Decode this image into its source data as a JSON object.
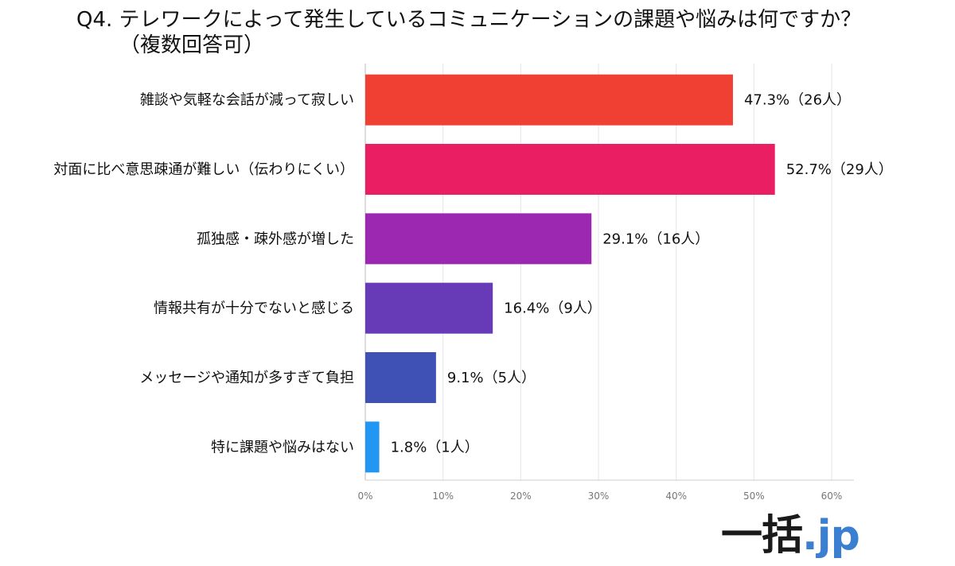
{
  "title": "Q4. テレワークによって発生しているコミュニケーションの課題や悩みは何ですか？",
  "subtitle": "（複数回答可）",
  "logo": {
    "main": "一括",
    "suffix": ".jp",
    "accent_color": "#3a7fd0"
  },
  "chart_data": {
    "type": "bar",
    "orientation": "horizontal",
    "title": "Q4. テレワークによって発生しているコミュニケーションの課題や悩みは何ですか？",
    "subtitle": "（複数回答可）",
    "categories": [
      "雑談や気軽な会話が減って寂しい",
      "対面に比べ意思疎通が難しい（伝わりにくい）",
      "孤独感・疎外感が増した",
      "情報共有が十分でないと感じる",
      "メッセージや通知が多すぎて負担",
      "特に課題や悩みはない"
    ],
    "values": [
      47.3,
      52.7,
      29.1,
      16.4,
      9.1,
      1.8
    ],
    "data_labels": [
      "47.3%（26人）",
      "52.7%（29人）",
      "29.1%（16人）",
      "16.4%（9人）",
      "9.1%（5人）",
      "1.8%（1人）"
    ],
    "colors": [
      "#f04034",
      "#e91e63",
      "#9c27b0",
      "#673ab7",
      "#3f51b5",
      "#2196f3"
    ],
    "xlim": [
      0,
      60
    ],
    "x_ticks": [
      "0%",
      "10%",
      "20%",
      "30%",
      "40%",
      "50%",
      "60%"
    ],
    "xlabel": "",
    "ylabel": "",
    "grid": true,
    "legend": "none"
  }
}
